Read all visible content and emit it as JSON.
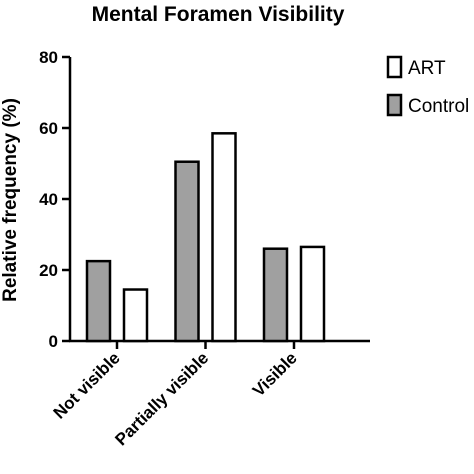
{
  "chart_data": {
    "type": "bar",
    "title": "Mental Foramen Visibility",
    "xlabel": "",
    "ylabel": "Relative frequency (%)",
    "ylim": [
      0,
      80
    ],
    "yticks": [
      0,
      20,
      40,
      60,
      80
    ],
    "categories": [
      "Not visible",
      "Partially visible",
      "Visible"
    ],
    "series": [
      {
        "name": "Control",
        "color": "#a0a0a0",
        "values": [
          22.5,
          50.5,
          26
        ]
      },
      {
        "name": "ART",
        "color": "#ffffff",
        "values": [
          14.5,
          58.5,
          26.5
        ]
      }
    ],
    "legend_order": [
      "ART",
      "Control"
    ],
    "legend_position": "right",
    "grid": false
  }
}
